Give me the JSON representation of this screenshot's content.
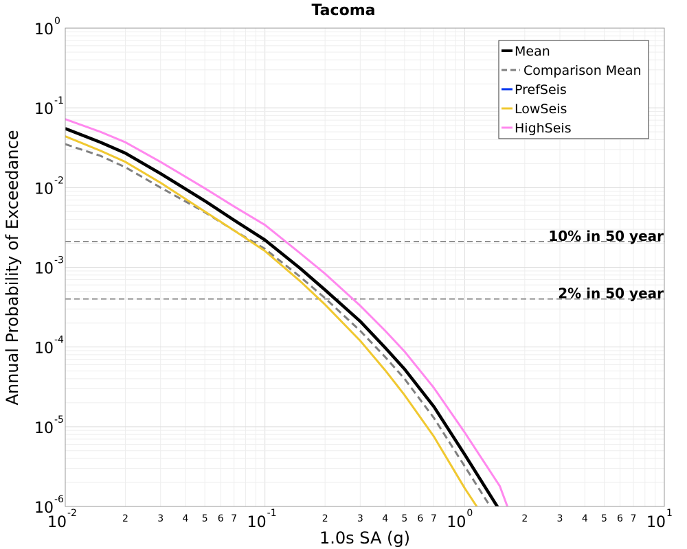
{
  "chart_data": {
    "type": "line",
    "title": "Tacoma",
    "xlabel": "1.0s SA (g)",
    "ylabel": "Annual Probability of Exceedance",
    "x_scale": "log",
    "y_scale": "log",
    "xlim": [
      0.01,
      10
    ],
    "ylim": [
      1e-06,
      1
    ],
    "grid": true,
    "legend_position": "top-right",
    "x_major_ticks": [
      {
        "base": "10",
        "exp": "-2"
      },
      {
        "base": "10",
        "exp": "-1"
      },
      {
        "base": "10",
        "exp": "0"
      },
      {
        "base": "10",
        "exp": "1"
      }
    ],
    "x_minor_tick_labels": [
      "2",
      "3",
      "4",
      "5",
      "6",
      "7"
    ],
    "y_major_ticks": [
      {
        "base": "10",
        "exp": "0"
      },
      {
        "base": "10",
        "exp": "-1"
      },
      {
        "base": "10",
        "exp": "-2"
      },
      {
        "base": "10",
        "exp": "-3"
      },
      {
        "base": "10",
        "exp": "-4"
      },
      {
        "base": "10",
        "exp": "-5"
      },
      {
        "base": "10",
        "exp": "-6"
      }
    ],
    "reference_lines": [
      {
        "label": "10% in 50 year",
        "y": 0.0021
      },
      {
        "label": "2% in 50 year",
        "y": 0.0004
      }
    ],
    "series": [
      {
        "name": "Mean",
        "color": "#000000",
        "style": "solid",
        "width": 4.5,
        "x": [
          0.01,
          0.015,
          0.02,
          0.03,
          0.05,
          0.07,
          0.1,
          0.15,
          0.2,
          0.3,
          0.4,
          0.5,
          0.7,
          1.0,
          1.5
        ],
        "y": [
          0.055,
          0.037,
          0.027,
          0.015,
          0.0068,
          0.0039,
          0.0022,
          0.00097,
          0.00052,
          0.00021,
          9.8e-05,
          5.3e-05,
          1.8e-05,
          4.5e-06,
          8.9e-07
        ]
      },
      {
        "name": "Comparison Mean",
        "color": "#808080",
        "style": "dashed",
        "width": 3,
        "x": [
          0.01,
          0.015,
          0.02,
          0.03,
          0.05,
          0.07,
          0.1,
          0.15,
          0.2,
          0.3,
          0.4,
          0.5,
          0.7,
          1.0,
          1.4
        ],
        "y": [
          0.035,
          0.025,
          0.018,
          0.01,
          0.0049,
          0.0029,
          0.0017,
          0.00076,
          0.00041,
          0.00016,
          7.5e-05,
          4e-05,
          1.3e-05,
          3.2e-06,
          8.5e-07
        ]
      },
      {
        "name": "PrefSeis",
        "color": "#0033ee",
        "style": "solid",
        "width": 3,
        "x": [],
        "y": []
      },
      {
        "name": "LowSeis",
        "color": "#f0c830",
        "style": "solid",
        "width": 3,
        "x": [
          0.01,
          0.015,
          0.02,
          0.03,
          0.05,
          0.07,
          0.1,
          0.15,
          0.2,
          0.3,
          0.4,
          0.5,
          0.7,
          1.0,
          1.2
        ],
        "y": [
          0.044,
          0.029,
          0.021,
          0.0115,
          0.005,
          0.0029,
          0.0016,
          0.00067,
          0.00034,
          0.00012,
          5.1e-05,
          2.5e-05,
          7.6e-06,
          1.7e-06,
          8.5e-07
        ]
      },
      {
        "name": "HighSeis",
        "color": "#ff88ee",
        "style": "solid",
        "width": 3,
        "x": [
          0.01,
          0.015,
          0.02,
          0.03,
          0.05,
          0.07,
          0.1,
          0.15,
          0.2,
          0.3,
          0.4,
          0.5,
          0.7,
          1.0,
          1.5,
          1.65
        ],
        "y": [
          0.072,
          0.05,
          0.037,
          0.021,
          0.0098,
          0.0058,
          0.0034,
          0.0015,
          0.00083,
          0.00033,
          0.00016,
          8.8e-05,
          3.1e-05,
          8.5e-06,
          1.8e-06,
          9.5e-07
        ]
      }
    ]
  }
}
